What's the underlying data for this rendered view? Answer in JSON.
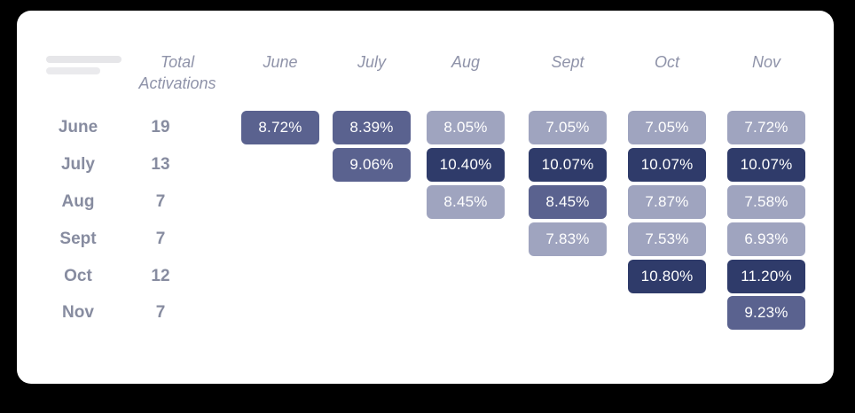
{
  "colors": {
    "page_bg": "#000000",
    "card_bg": "#ffffff",
    "skeleton_bar": "#e6e6e9",
    "header_text": "#8f93a9",
    "label_text": "#878ca0",
    "cell_text": "#ffffff",
    "cell_light": "#9fa4bf",
    "cell_medium": "#5a628f",
    "cell_dark": "#2f3b6a"
  },
  "table": {
    "corner_header": {
      "line1": "Total",
      "line2": "Activations"
    },
    "month_columns": [
      "June",
      "July",
      "Aug",
      "Sept",
      "Oct",
      "Nov"
    ],
    "rows": [
      {
        "label": "June",
        "total": "19"
      },
      {
        "label": "July",
        "total": "13"
      },
      {
        "label": "Aug",
        "total": "7"
      },
      {
        "label": "Sept",
        "total": "7"
      },
      {
        "label": "Oct",
        "total": "12"
      },
      {
        "label": "Nov",
        "total": "7"
      }
    ],
    "cells": [
      {
        "row": 0,
        "col": 0,
        "value": "8.72%",
        "tone": "medium"
      },
      {
        "row": 0,
        "col": 1,
        "value": "8.39%",
        "tone": "medium"
      },
      {
        "row": 0,
        "col": 2,
        "value": "8.05%",
        "tone": "light"
      },
      {
        "row": 0,
        "col": 3,
        "value": "7.05%",
        "tone": "light"
      },
      {
        "row": 0,
        "col": 4,
        "value": "7.05%",
        "tone": "light"
      },
      {
        "row": 0,
        "col": 5,
        "value": "7.72%",
        "tone": "light"
      },
      {
        "row": 1,
        "col": 1,
        "value": "9.06%",
        "tone": "medium"
      },
      {
        "row": 1,
        "col": 2,
        "value": "10.40%",
        "tone": "dark"
      },
      {
        "row": 1,
        "col": 3,
        "value": "10.07%",
        "tone": "dark"
      },
      {
        "row": 1,
        "col": 4,
        "value": "10.07%",
        "tone": "dark"
      },
      {
        "row": 1,
        "col": 5,
        "value": "10.07%",
        "tone": "dark"
      },
      {
        "row": 2,
        "col": 2,
        "value": "8.45%",
        "tone": "light"
      },
      {
        "row": 2,
        "col": 3,
        "value": "8.45%",
        "tone": "medium"
      },
      {
        "row": 2,
        "col": 4,
        "value": "7.87%",
        "tone": "light"
      },
      {
        "row": 2,
        "col": 5,
        "value": "7.58%",
        "tone": "light"
      },
      {
        "row": 3,
        "col": 3,
        "value": "7.83%",
        "tone": "light"
      },
      {
        "row": 3,
        "col": 4,
        "value": "7.53%",
        "tone": "light"
      },
      {
        "row": 3,
        "col": 5,
        "value": "6.93%",
        "tone": "light"
      },
      {
        "row": 4,
        "col": 4,
        "value": "10.80%",
        "tone": "dark"
      },
      {
        "row": 4,
        "col": 5,
        "value": "11.20%",
        "tone": "dark"
      },
      {
        "row": 5,
        "col": 5,
        "value": "9.23%",
        "tone": "medium"
      }
    ]
  },
  "chart_data": {
    "type": "heatmap",
    "title": "",
    "corner_header": "Total Activations",
    "columns": [
      "June",
      "July",
      "Aug",
      "Sept",
      "Oct",
      "Nov"
    ],
    "rows": [
      {
        "label": "June",
        "total_activations": 19,
        "values": {
          "June": 8.72,
          "July": 8.39,
          "Aug": 8.05,
          "Sept": 7.05,
          "Oct": 7.05,
          "Nov": 7.72
        }
      },
      {
        "label": "July",
        "total_activations": 13,
        "values": {
          "July": 9.06,
          "Aug": 10.4,
          "Sept": 10.07,
          "Oct": 10.07,
          "Nov": 10.07
        }
      },
      {
        "label": "Aug",
        "total_activations": 7,
        "values": {
          "Aug": 8.45,
          "Sept": 8.45,
          "Oct": 7.87,
          "Nov": 7.58
        }
      },
      {
        "label": "Sept",
        "total_activations": 7,
        "values": {
          "Sept": 7.83,
          "Oct": 7.53,
          "Nov": 6.93
        }
      },
      {
        "label": "Oct",
        "total_activations": 12,
        "values": {
          "Oct": 10.8,
          "Nov": 11.2
        }
      },
      {
        "label": "Nov",
        "total_activations": 7,
        "values": {
          "Nov": 9.23
        }
      }
    ],
    "value_unit": "%",
    "layout": "lower-triangle cohort grid, one cell per (cohort row, month column), tones: light ~6.9-8.45%, medium ~8.4-9.2%, dark >=10%"
  }
}
